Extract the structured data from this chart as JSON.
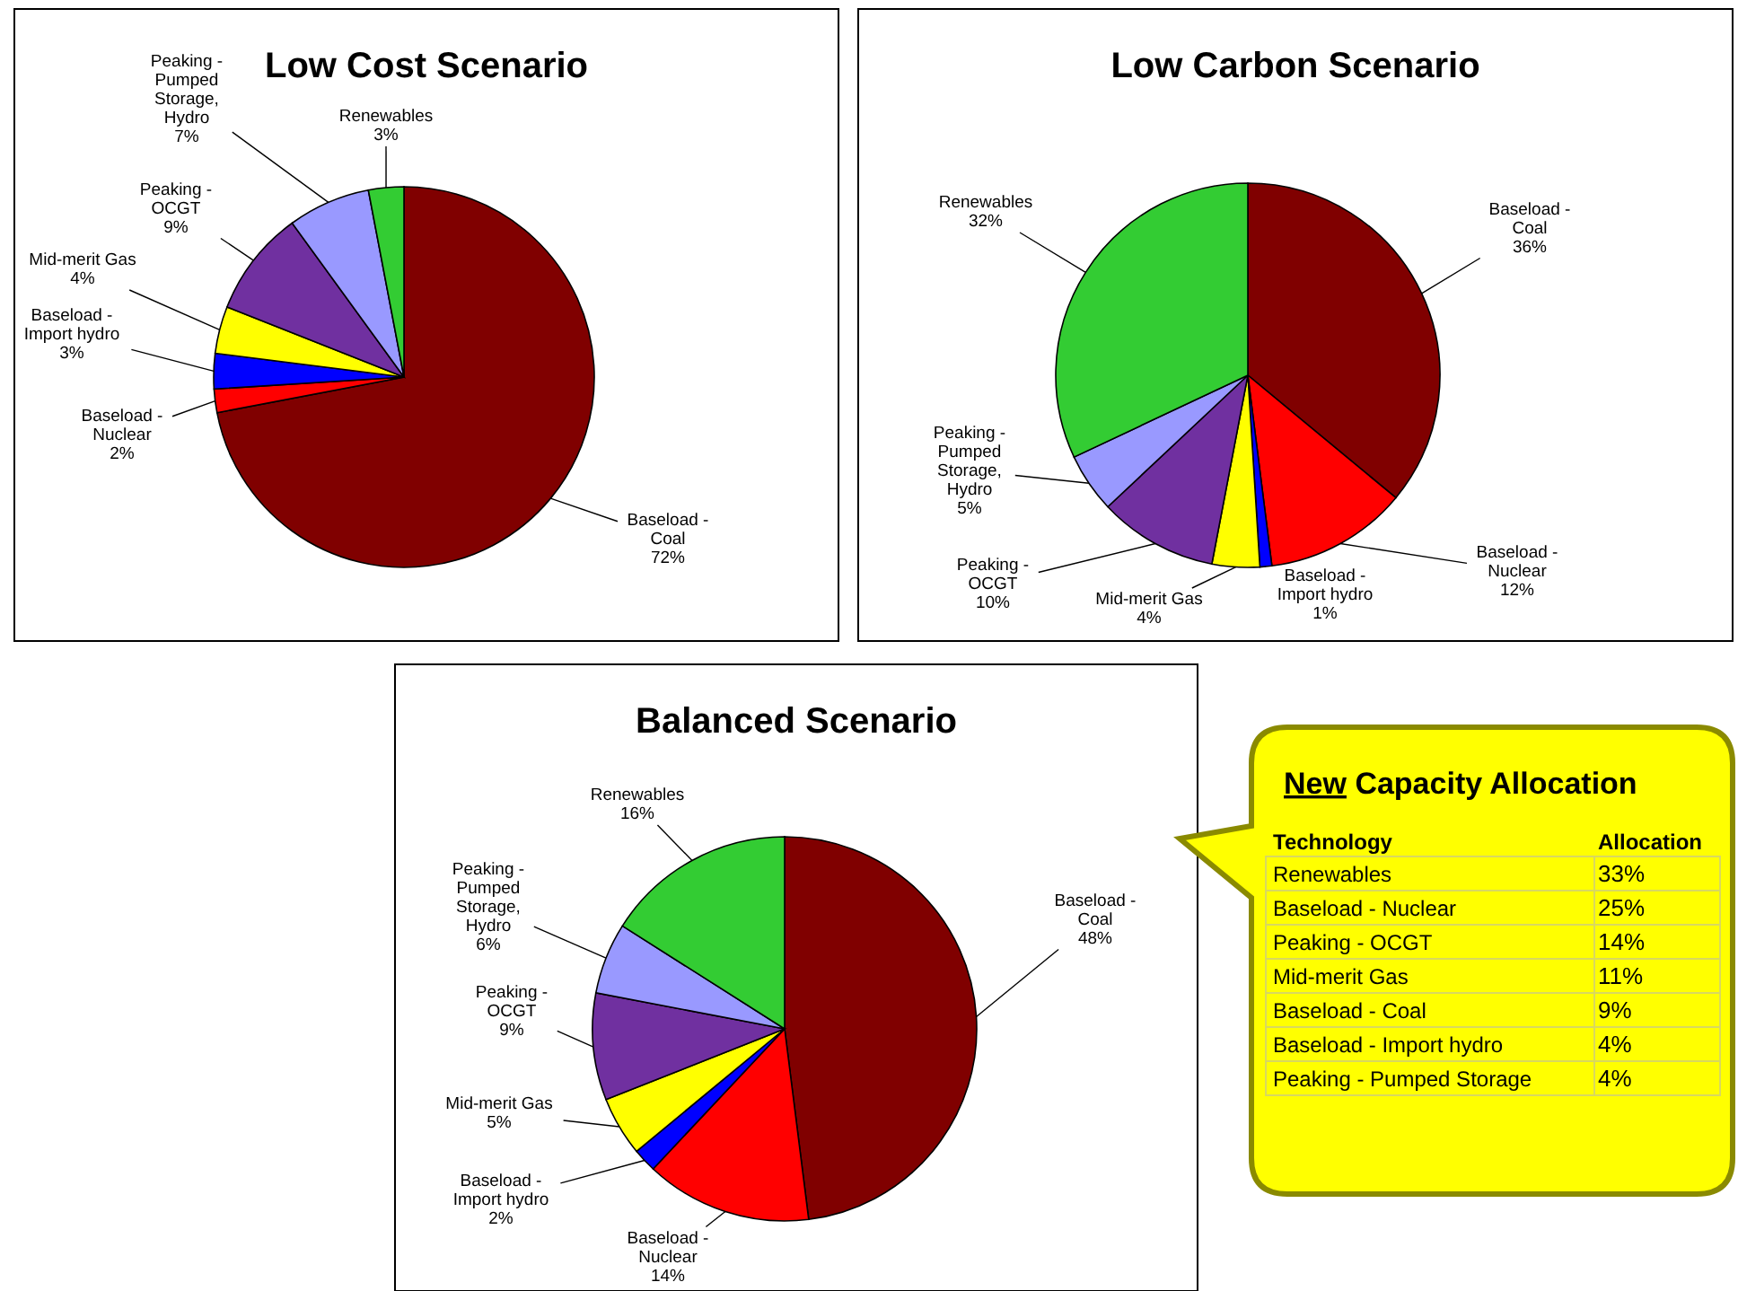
{
  "chart_data": [
    {
      "type": "pie",
      "title": "Low Cost Scenario",
      "categories": [
        "Baseload - Coal",
        "Baseload - Nuclear",
        "Baseload - Import hydro",
        "Mid-merit Gas",
        "Peaking - OCGT",
        "Peaking - Pumped Storage, Hydro",
        "Renewables"
      ],
      "values": [
        72,
        2,
        3,
        4,
        9,
        7,
        3
      ],
      "value_labels": [
        "72%",
        "2%",
        "3%",
        "4%",
        "9%",
        "7%",
        "3%"
      ],
      "colors": [
        "#800000",
        "#ff0000",
        "#0000ff",
        "#ffff00",
        "#7030a0",
        "#9999ff",
        "#33cc33"
      ]
    },
    {
      "type": "pie",
      "title": "Low Carbon Scenario",
      "categories": [
        "Baseload - Coal",
        "Baseload - Nuclear",
        "Baseload - Import hydro",
        "Mid-merit Gas",
        "Peaking - OCGT",
        "Peaking - Pumped Storage, Hydro",
        "Renewables"
      ],
      "values": [
        36,
        12,
        1,
        4,
        10,
        5,
        32
      ],
      "value_labels": [
        "36%",
        "12%",
        "1%",
        "4%",
        "10%",
        "5%",
        "32%"
      ],
      "colors": [
        "#800000",
        "#ff0000",
        "#0000ff",
        "#ffff00",
        "#7030a0",
        "#9999ff",
        "#33cc33"
      ]
    },
    {
      "type": "pie",
      "title": "Balanced Scenario",
      "categories": [
        "Baseload - Coal",
        "Baseload - Nuclear",
        "Baseload - Import hydro",
        "Mid-merit Gas",
        "Peaking - OCGT",
        "Peaking - Pumped Storage, Hydro",
        "Renewables"
      ],
      "values": [
        48,
        14,
        2,
        5,
        9,
        6,
        16
      ],
      "value_labels": [
        "48%",
        "14%",
        "2%",
        "5%",
        "9%",
        "6%",
        "16%"
      ],
      "colors": [
        "#800000",
        "#ff0000",
        "#0000ff",
        "#ffff00",
        "#7030a0",
        "#9999ff",
        "#33cc33"
      ]
    },
    {
      "type": "other",
      "title": "New Capacity Allocation",
      "xlabel": "Technology",
      "ylabel": "Allocation",
      "categories": [
        "Renewables",
        "Baseload - Nuclear",
        "Peaking - OCGT",
        "Mid-merit Gas",
        "Baseload - Coal",
        "Baseload - Import hydro",
        "Peaking - Pumped Storage"
      ],
      "value_labels": [
        "33%",
        "25%",
        "14%",
        "11%",
        "9%",
        "4%",
        "4%"
      ]
    }
  ]
}
